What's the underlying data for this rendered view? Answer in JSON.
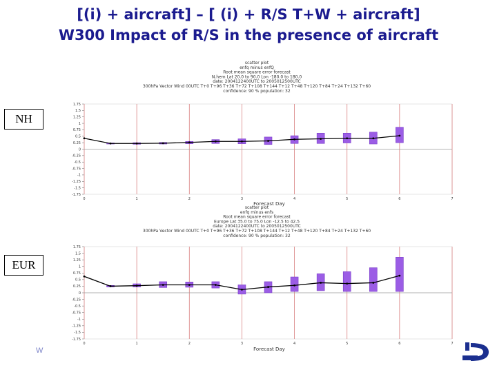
{
  "slide": {
    "title_line1": "[(i) + aircraft] – [ (i) + R/S T+W + aircraft]",
    "title_line2": "W300 Impact of R/S in the presence of aircraft",
    "footer_text": "W"
  },
  "labels": {
    "nh": "NH",
    "eur": "EUR"
  },
  "colors": {
    "title": "#1b1b8f",
    "box": "#9b5de5",
    "box_edge": "#7a3fc8",
    "vline": "#d98080",
    "line": "#000000"
  },
  "chart_data": [
    {
      "type": "line",
      "region": "NH",
      "header": [
        "scatter plot",
        "enfq minus enfQ",
        "Root mean square error forecast",
        "N.hem Lat 20.0 to 90.0 Lon -180.0 to 180.0",
        "date: 2004122400UTC to 2005012500UTC",
        "300hPa Vector Wind 00UTC T+0 T+96 T+36 T+72 T+108 T+144 T+12 T+48 T+120 T+84 T+24 T+132 T+60",
        "confidence: 90 %  population: 32"
      ],
      "xlabel": "Forecast Day",
      "xlim": [
        0,
        7
      ],
      "x_ticks": [
        "0",
        "1",
        "2",
        "3",
        "4",
        "5",
        "6",
        "7"
      ],
      "ylim": [
        -1.75,
        1.75
      ],
      "y_ticks": [
        "1.75",
        "1.5",
        "1.25",
        "1",
        "0.75",
        "0.5",
        "0.25",
        "0",
        "-0.25",
        "-0.5",
        "-0.75",
        "-1",
        "-1.25",
        "-1.5",
        "-1.75"
      ],
      "x": [
        0,
        0.5,
        1,
        1.5,
        2,
        2.5,
        3,
        3.5,
        4,
        4.5,
        5,
        5.5,
        6
      ],
      "values": [
        0.42,
        0.22,
        0.22,
        0.23,
        0.26,
        0.3,
        0.3,
        0.32,
        0.38,
        0.4,
        0.42,
        0.42,
        0.52
      ],
      "ci_low": [
        null,
        0.2,
        0.19,
        0.2,
        0.21,
        0.22,
        0.21,
        0.18,
        0.22,
        0.22,
        0.24,
        0.2,
        0.25
      ],
      "ci_high": [
        null,
        0.24,
        0.25,
        0.26,
        0.3,
        0.37,
        0.4,
        0.47,
        0.52,
        0.62,
        0.62,
        0.66,
        0.85
      ]
    },
    {
      "type": "line",
      "region": "EUR",
      "header": [
        "scatter plot",
        "enfq minus enfs",
        "Root mean square error forecast",
        "Europe Lat 35.0 to 75.0 Lon -12.5 to 42.5",
        "date: 2004122400UTC to 2005012500UTC",
        "300hPa Vector Wind 00UTC T+0 T+96 T+36 T+72 T+108 T+144 T+12 T+48 T+120 T+84 T+24 T+132 T+60",
        "confidence: 90 %  population: 32"
      ],
      "xlabel": "Forecast Day",
      "xlim": [
        0,
        7
      ],
      "x_ticks": [
        "0",
        "1",
        "2",
        "3",
        "4",
        "5",
        "6",
        "7"
      ],
      "ylim": [
        -1.75,
        1.75
      ],
      "y_ticks": [
        "1.75",
        "1.5",
        "1.25",
        "1",
        "0.75",
        "0.5",
        "0.25",
        "0",
        "-0.25",
        "-0.5",
        "-0.75",
        "-1",
        "-1.25",
        "-1.5",
        "-1.75"
      ],
      "x": [
        0,
        0.5,
        1,
        1.5,
        2,
        2.5,
        3,
        3.5,
        4,
        4.5,
        5,
        5.5,
        6
      ],
      "values": [
        0.62,
        0.25,
        0.27,
        0.3,
        0.3,
        0.3,
        0.12,
        0.22,
        0.28,
        0.38,
        0.35,
        0.38,
        0.65
      ],
      "ci_low": [
        null,
        0.22,
        0.22,
        0.2,
        0.21,
        0.18,
        -0.05,
        0.0,
        0.05,
        0.08,
        0.05,
        0.05,
        0.05
      ],
      "ci_high": [
        null,
        0.28,
        0.34,
        0.42,
        0.41,
        0.42,
        0.3,
        0.42,
        0.6,
        0.72,
        0.8,
        0.95,
        1.35
      ]
    }
  ]
}
